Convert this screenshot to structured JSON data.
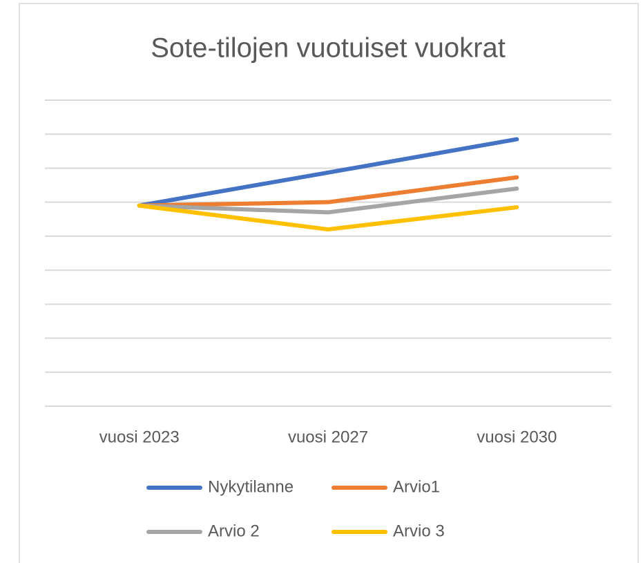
{
  "chart_data": {
    "type": "line",
    "title": "Sote-tilojen vuotuiset vuokrat",
    "categories": [
      "vuosi 2023",
      "vuosi 2027",
      "vuosi 2030"
    ],
    "series": [
      {
        "name": "Nykytilanne",
        "color": "#4472c4",
        "values": [
          5.9,
          6.87,
          7.85
        ]
      },
      {
        "name": "Arvio1",
        "color": "#ed7d31",
        "values": [
          5.9,
          6.0,
          6.73
        ]
      },
      {
        "name": "Arvio 2",
        "color": "#a5a5a5",
        "values": [
          5.9,
          5.7,
          6.4
        ]
      },
      {
        "name": "Arvio 3",
        "color": "#ffc000",
        "values": [
          5.9,
          5.2,
          5.85
        ]
      }
    ],
    "ylim": [
      0,
      9
    ],
    "yticks": [
      0,
      1,
      2,
      3,
      4,
      5,
      6,
      7,
      8,
      9
    ],
    "grid": true
  }
}
